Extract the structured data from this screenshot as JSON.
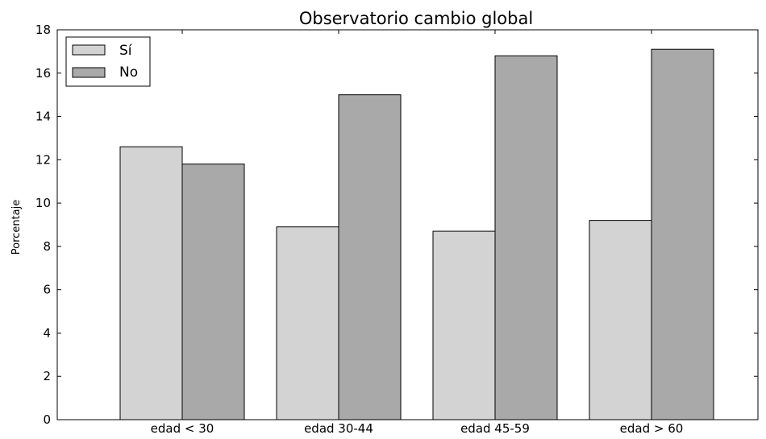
{
  "chart_data": {
    "type": "bar",
    "title": "Observatorio cambio global",
    "xlabel": "",
    "ylabel": "Porcentaje",
    "categories": [
      "edad < 30",
      "edad 30-44",
      "edad 45-59",
      "edad > 60"
    ],
    "series": [
      {
        "name": "Sí",
        "values": [
          12.6,
          8.9,
          8.7,
          9.2
        ],
        "color": "#d3d3d3"
      },
      {
        "name": "No",
        "values": [
          11.8,
          15.0,
          16.8,
          17.1
        ],
        "color": "#a9a9a9"
      }
    ],
    "ylim": [
      0,
      18
    ],
    "yticks": [
      0,
      2,
      4,
      6,
      8,
      10,
      12,
      14,
      16,
      18
    ],
    "grid": false,
    "legend": "top-left"
  }
}
